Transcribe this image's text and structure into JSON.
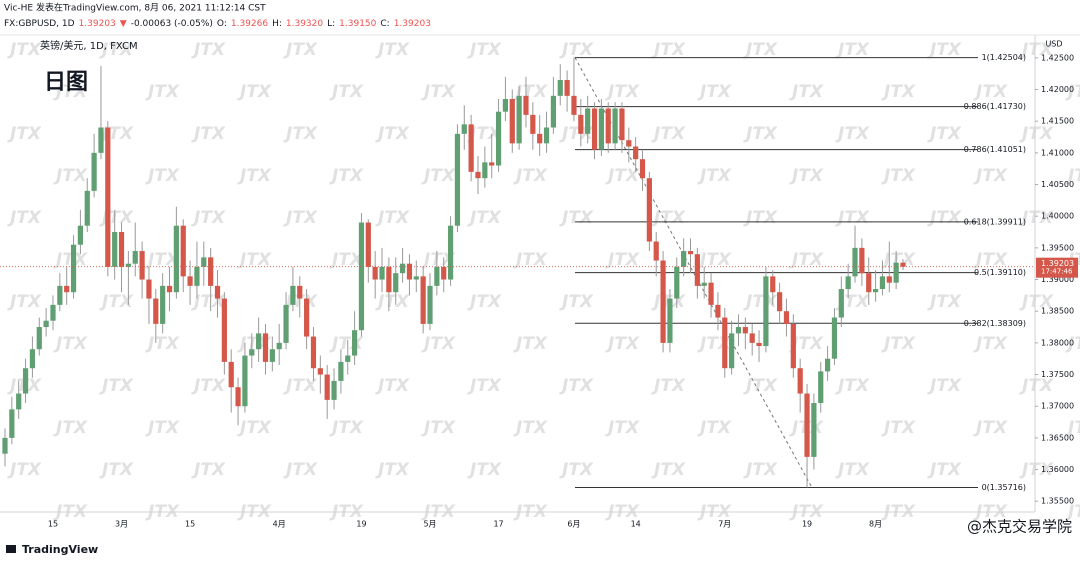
{
  "chart_data": {
    "type": "candlestick",
    "header": {
      "line1": "Vic-HE 发表在TradingView.com, 8月 06, 2021 11:12:14 CST",
      "quote": [
        {
          "text": "FX:GBPUSD, 1D",
          "color": "#131722"
        },
        {
          "text": "1.39203",
          "color": "#ef5350"
        },
        {
          "text": "▼",
          "color": "#ef5350"
        },
        {
          "text": "-0.00063 (-0.05%)",
          "color": "#131722"
        },
        {
          "text": "O:",
          "color": "#131722"
        },
        {
          "text": "1.39266",
          "color": "#ef5350"
        },
        {
          "text": "H:",
          "color": "#131722"
        },
        {
          "text": "1.39320",
          "color": "#ef5350"
        },
        {
          "text": "L:",
          "color": "#131722"
        },
        {
          "text": "1.39150",
          "color": "#ef5350"
        },
        {
          "text": "C:",
          "color": "#131722"
        },
        {
          "text": "1.39203",
          "color": "#ef5350"
        }
      ]
    },
    "legend_text": "英镑/美元, 1D, FXCM",
    "title": "日图",
    "y_axis_label": "USD",
    "price_tag": "1.39203",
    "countdown": "17:47:46",
    "watermark": "JTX",
    "source_logo": "TradingView",
    "credit": "@杰克交易学院",
    "up_color": "#5f9f72",
    "down_color": "#d4574a",
    "grid": false,
    "ylim": [
      1.3533,
      1.4275
    ],
    "yticks": [
      {
        "value": 1.355,
        "label": "1.35500"
      },
      {
        "value": 1.36,
        "label": "1.36000"
      },
      {
        "value": 1.365,
        "label": "1.36500"
      },
      {
        "value": 1.37,
        "label": "1.37000"
      },
      {
        "value": 1.375,
        "label": "1.37500"
      },
      {
        "value": 1.38,
        "label": "1.38000"
      },
      {
        "value": 1.385,
        "label": "1.38500"
      },
      {
        "value": 1.39,
        "label": "1.39000"
      },
      {
        "value": 1.395,
        "label": "1.39500"
      },
      {
        "value": 1.4,
        "label": "1.40000"
      },
      {
        "value": 1.405,
        "label": "1.40500"
      },
      {
        "value": 1.41,
        "label": "1.41000"
      },
      {
        "value": 1.415,
        "label": "1.41500"
      },
      {
        "value": 1.42,
        "label": "1.42000"
      },
      {
        "value": 1.425,
        "label": "1.42500"
      }
    ],
    "fib_levels": [
      {
        "label": "1(1.42504)",
        "value": 1.42504
      },
      {
        "label": "0.886(1.41730)",
        "value": 1.4173
      },
      {
        "label": "0.786(1.41051)",
        "value": 1.41051
      },
      {
        "label": "0.618(1.39911)",
        "value": 1.39911
      },
      {
        "label": "0.5(1.39110)",
        "value": 1.3911
      },
      {
        "label": "0.382(1.38309)",
        "value": 1.38309
      },
      {
        "label": "0(1.35716)",
        "value": 1.35716
      }
    ],
    "categories": [
      null,
      null,
      null,
      null,
      null,
      null,
      null,
      "15",
      null,
      null,
      null,
      null,
      null,
      null,
      null,
      null,
      null,
      "3月",
      null,
      null,
      null,
      null,
      null,
      null,
      null,
      null,
      null,
      "15",
      null,
      null,
      null,
      null,
      null,
      null,
      null,
      null,
      null,
      null,
      null,
      null,
      "4月",
      null,
      null,
      null,
      null,
      null,
      null,
      null,
      null,
      null,
      null,
      null,
      "19",
      null,
      null,
      null,
      null,
      null,
      null,
      null,
      null,
      null,
      "5月",
      null,
      null,
      null,
      null,
      null,
      null,
      null,
      null,
      null,
      "17",
      null,
      null,
      null,
      null,
      null,
      null,
      null,
      null,
      null,
      null,
      "6月",
      null,
      null,
      null,
      null,
      null,
      null,
      null,
      null,
      "14",
      null,
      null,
      null,
      null,
      null,
      null,
      null,
      null,
      null,
      null,
      null,
      null,
      "7月",
      null,
      null,
      null,
      null,
      null,
      null,
      null,
      null,
      null,
      null,
      null,
      "19",
      null,
      null,
      null,
      null,
      null,
      null,
      null,
      null,
      null,
      "8月",
      null,
      null,
      null,
      null
    ],
    "open": [
      1.3625,
      1.365,
      1.3695,
      1.372,
      1.376,
      1.379,
      1.3825,
      1.3835,
      1.386,
      1.389,
      1.388,
      1.3955,
      1.3985,
      1.404,
      1.41,
      1.414,
      1.392,
      1.3975,
      1.392,
      1.3925,
      1.3945,
      1.39,
      1.387,
      1.383,
      1.389,
      1.388,
      1.3985,
      1.3905,
      1.389,
      1.392,
      1.3935,
      1.389,
      1.387,
      1.377,
      1.373,
      1.37,
      1.378,
      1.379,
      1.3815,
      1.377,
      1.379,
      1.38,
      1.386,
      1.389,
      1.387,
      1.381,
      1.376,
      1.375,
      1.371,
      1.374,
      1.377,
      1.378,
      1.382,
      1.399,
      1.392,
      1.39,
      1.392,
      1.388,
      1.391,
      1.3925,
      1.39,
      1.3905,
      1.383,
      1.389,
      1.392,
      1.39,
      1.3985,
      1.413,
      1.4145,
      1.407,
      1.406,
      1.4085,
      1.408,
      1.4165,
      1.4185,
      1.4115,
      1.419,
      1.416,
      1.413,
      1.4115,
      1.414,
      1.419,
      1.4215,
      1.419,
      1.416,
      1.413,
      1.417,
      1.4105,
      1.417,
      1.4115,
      1.417,
      1.412,
      1.411,
      1.409,
      1.406,
      1.396,
      1.393,
      1.38,
      1.387,
      1.392,
      1.3945,
      1.394,
      1.389,
      1.3895,
      1.386,
      1.384,
      1.376,
      1.3815,
      1.3825,
      1.3815,
      1.38,
      1.3795,
      1.3905,
      1.388,
      1.385,
      1.383,
      1.376,
      1.372,
      1.362,
      1.3705,
      1.3755,
      1.3775,
      1.384,
      1.3885,
      1.3905,
      1.395,
      1.391,
      1.388,
      1.3885,
      1.3905,
      1.3895,
      1.39266
    ],
    "high": [
      1.3665,
      1.3715,
      1.374,
      1.3775,
      1.381,
      1.384,
      1.3855,
      1.3875,
      1.391,
      1.392,
      1.397,
      1.401,
      1.406,
      1.413,
      1.4237,
      1.415,
      1.401,
      1.399,
      1.3945,
      1.399,
      1.396,
      1.392,
      1.3885,
      1.391,
      1.392,
      1.4015,
      1.3995,
      1.393,
      1.396,
      1.396,
      1.395,
      1.3915,
      1.388,
      1.379,
      1.3745,
      1.38,
      1.3815,
      1.384,
      1.383,
      1.381,
      1.383,
      1.388,
      1.392,
      1.3905,
      1.3885,
      1.3825,
      1.378,
      1.3765,
      1.376,
      1.379,
      1.3805,
      1.385,
      1.4005,
      1.3995,
      1.3945,
      1.395,
      1.3935,
      1.3935,
      1.395,
      1.394,
      1.393,
      1.392,
      1.391,
      1.3945,
      1.3935,
      1.4,
      1.4145,
      1.4175,
      1.416,
      1.4095,
      1.411,
      1.413,
      1.4185,
      1.422,
      1.42,
      1.4205,
      1.422,
      1.418,
      1.416,
      1.4165,
      1.422,
      1.424,
      1.423,
      1.42504,
      1.4185,
      1.419,
      1.418,
      1.4185,
      1.418,
      1.418,
      1.418,
      1.414,
      1.4125,
      1.4105,
      1.407,
      1.3975,
      1.3945,
      1.3885,
      1.3935,
      1.3965,
      1.3965,
      1.395,
      1.392,
      1.391,
      1.388,
      1.3855,
      1.3835,
      1.3845,
      1.384,
      1.383,
      1.382,
      1.392,
      1.3915,
      1.3895,
      1.387,
      1.3845,
      1.3775,
      1.3735,
      1.372,
      1.377,
      1.3795,
      1.3855,
      1.3905,
      1.3925,
      1.3985,
      1.3965,
      1.3935,
      1.3915,
      1.393,
      1.396,
      1.3945,
      1.3932
    ],
    "low": [
      1.3605,
      1.364,
      1.368,
      1.3705,
      1.3745,
      1.378,
      1.381,
      1.382,
      1.385,
      1.386,
      1.387,
      1.394,
      1.3975,
      1.403,
      1.409,
      1.3905,
      1.39,
      1.388,
      1.386,
      1.3905,
      1.387,
      1.383,
      1.38,
      1.3815,
      1.385,
      1.387,
      1.388,
      1.386,
      1.387,
      1.389,
      1.385,
      1.384,
      1.375,
      1.369,
      1.367,
      1.369,
      1.376,
      1.377,
      1.375,
      1.3755,
      1.3765,
      1.379,
      1.385,
      1.384,
      1.379,
      1.374,
      1.372,
      1.368,
      1.3695,
      1.372,
      1.375,
      1.3765,
      1.381,
      1.3895,
      1.387,
      1.388,
      1.385,
      1.386,
      1.3895,
      1.3875,
      1.388,
      1.3815,
      1.382,
      1.3875,
      1.388,
      1.389,
      1.3975,
      1.4105,
      1.4055,
      1.4035,
      1.4045,
      1.406,
      1.407,
      1.415,
      1.41,
      1.4105,
      1.414,
      1.4105,
      1.4095,
      1.41,
      1.413,
      1.4175,
      1.4165,
      1.415,
      1.411,
      1.4115,
      1.409,
      1.4095,
      1.41,
      1.4105,
      1.41,
      1.4085,
      1.407,
      1.404,
      1.3945,
      1.3905,
      1.3785,
      1.3785,
      1.3855,
      1.3905,
      1.391,
      1.387,
      1.387,
      1.384,
      1.382,
      1.3745,
      1.375,
      1.3795,
      1.379,
      1.378,
      1.377,
      1.3785,
      1.386,
      1.383,
      1.381,
      1.3745,
      1.369,
      1.35716,
      1.36,
      1.369,
      1.374,
      1.3765,
      1.3825,
      1.387,
      1.3895,
      1.389,
      1.386,
      1.3865,
      1.3875,
      1.388,
      1.3885,
      1.3915
    ],
    "close": [
      1.365,
      1.3695,
      1.372,
      1.376,
      1.379,
      1.3825,
      1.3835,
      1.386,
      1.389,
      1.388,
      1.3955,
      1.3985,
      1.404,
      1.41,
      1.414,
      1.392,
      1.3975,
      1.392,
      1.3925,
      1.3945,
      1.39,
      1.387,
      1.383,
      1.389,
      1.388,
      1.3985,
      1.3905,
      1.389,
      1.392,
      1.3935,
      1.389,
      1.387,
      1.377,
      1.373,
      1.37,
      1.378,
      1.379,
      1.3815,
      1.377,
      1.379,
      1.38,
      1.386,
      1.389,
      1.387,
      1.381,
      1.376,
      1.375,
      1.371,
      1.374,
      1.377,
      1.378,
      1.382,
      1.399,
      1.392,
      1.39,
      1.392,
      1.388,
      1.391,
      1.3925,
      1.39,
      1.3905,
      1.383,
      1.389,
      1.392,
      1.39,
      1.3985,
      1.413,
      1.4145,
      1.407,
      1.406,
      1.4085,
      1.408,
      1.4165,
      1.4185,
      1.4115,
      1.419,
      1.416,
      1.413,
      1.4115,
      1.414,
      1.419,
      1.4215,
      1.419,
      1.416,
      1.413,
      1.417,
      1.4105,
      1.417,
      1.4115,
      1.417,
      1.412,
      1.411,
      1.409,
      1.406,
      1.396,
      1.393,
      1.38,
      1.387,
      1.392,
      1.3945,
      1.394,
      1.389,
      1.3895,
      1.386,
      1.384,
      1.376,
      1.3815,
      1.3825,
      1.3815,
      1.38,
      1.3795,
      1.3905,
      1.388,
      1.385,
      1.383,
      1.376,
      1.372,
      1.362,
      1.3705,
      1.3755,
      1.3775,
      1.384,
      1.3885,
      1.3905,
      1.395,
      1.391,
      1.388,
      1.3885,
      1.3905,
      1.3895,
      1.39266,
      1.39203
    ]
  }
}
